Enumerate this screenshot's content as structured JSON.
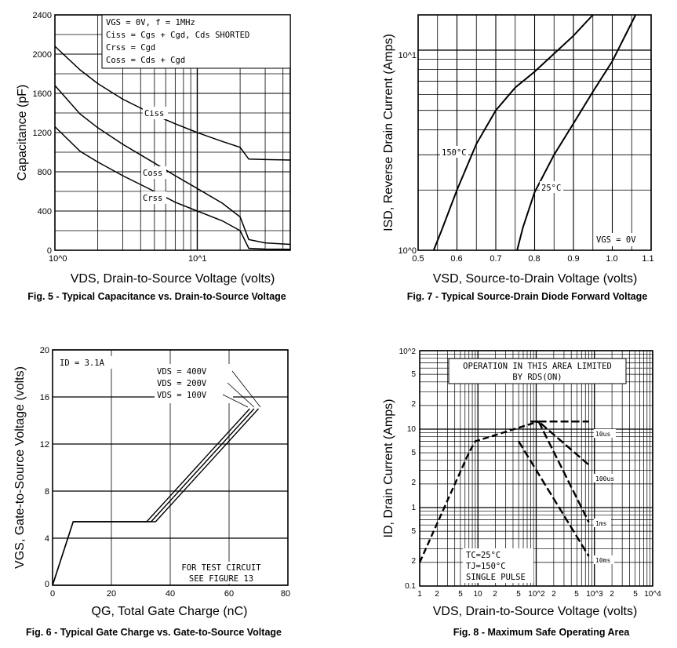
{
  "chart_data": [
    {
      "id": "fig5",
      "type": "line",
      "caption": "Fig. 5 - Typical Capacitance vs. Drain-to-Source Voltage",
      "xlabel": "VDS, Drain-to-Source Voltage (volts)",
      "ylabel": "Capacitance (pF)",
      "xscale": "log",
      "xlim": [
        1,
        45
      ],
      "ylim": [
        0,
        2400
      ],
      "xticks": [
        "10^0",
        "10^1"
      ],
      "yticks": [
        0,
        400,
        800,
        1200,
        1600,
        2000,
        2400
      ],
      "legend_lines": [
        "VGS = 0V, f = 1MHz",
        "Ciss = Cgs + Cgd, Cds SHORTED",
        "Crss = Cgd",
        "Coss = Cds + Cgd"
      ],
      "series": [
        {
          "name": "Ciss",
          "x": [
            1,
            1.5,
            2,
            3,
            5,
            7,
            10,
            15,
            20,
            23,
            30,
            45
          ],
          "y": [
            2080,
            1840,
            1700,
            1540,
            1380,
            1290,
            1200,
            1110,
            1050,
            930,
            925,
            920
          ]
        },
        {
          "name": "Coss",
          "x": [
            1,
            1.5,
            2,
            3,
            5,
            7,
            10,
            15,
            20,
            23,
            30,
            45
          ],
          "y": [
            1680,
            1390,
            1250,
            1080,
            890,
            760,
            630,
            480,
            340,
            110,
            75,
            60
          ]
        },
        {
          "name": "Crss",
          "x": [
            1,
            1.5,
            2,
            3,
            5,
            7,
            10,
            15,
            20,
            23,
            30,
            45
          ],
          "y": [
            1260,
            1010,
            900,
            760,
            600,
            490,
            400,
            300,
            200,
            20,
            12,
            10
          ]
        }
      ]
    },
    {
      "id": "fig7",
      "type": "line",
      "caption": "Fig. 7 - Typical Source-Drain Diode Forward Voltage",
      "xlabel": "VSD, Source-to-Drain Voltage (volts)",
      "ylabel": "ISD, Reverse Drain Current (Amps)",
      "yscale": "log",
      "xlim": [
        0.5,
        1.1
      ],
      "ylim": [
        1,
        15
      ],
      "xticks": [
        "0.5",
        "0.6",
        "0.7",
        "0.8",
        "0.9",
        "1.0",
        "1.1"
      ],
      "yticks": [
        "10^0",
        "10^1"
      ],
      "annotation": "VGS = 0V",
      "series": [
        {
          "name": "150°C",
          "x": [
            0.54,
            0.56,
            0.6,
            0.65,
            0.7,
            0.75,
            0.8,
            0.86,
            0.9,
            0.95
          ],
          "y": [
            1.0,
            1.25,
            2.0,
            3.4,
            5.0,
            6.5,
            7.8,
            10.0,
            11.8,
            15.0
          ]
        },
        {
          "name": "25°C",
          "x": [
            0.755,
            0.77,
            0.8,
            0.85,
            0.9,
            0.95,
            1.0,
            1.06
          ],
          "y": [
            1.0,
            1.3,
            1.95,
            3.0,
            4.3,
            6.2,
            8.8,
            15.0
          ]
        }
      ]
    },
    {
      "id": "fig6",
      "type": "line",
      "caption": "Fig. 6 - Typical Gate Charge vs. Gate-to-Source Voltage",
      "xlabel": "QG, Total Gate Charge (nC)",
      "ylabel": "VGS, Gate-to-Source Voltage (volts)",
      "xlim": [
        0,
        80
      ],
      "ylim": [
        0,
        20
      ],
      "xticks": [
        0,
        20,
        40,
        60,
        80
      ],
      "yticks": [
        0,
        4,
        8,
        12,
        16,
        20
      ],
      "id_label": "ID = 3.1A",
      "note": [
        "FOR TEST CIRCUIT",
        "SEE FIGURE 13"
      ],
      "legend_lines": [
        "VDS = 400V",
        "VDS = 200V",
        "VDS = 100V"
      ],
      "series": [
        {
          "name": "VDS = 400V",
          "x": [
            0,
            7,
            35,
            70
          ],
          "y": [
            0,
            5.4,
            5.4,
            15
          ]
        },
        {
          "name": "VDS = 200V",
          "x": [
            0,
            7,
            33.5,
            68.5
          ],
          "y": [
            0,
            5.4,
            5.4,
            15
          ]
        },
        {
          "name": "VDS = 100V",
          "x": [
            0,
            7,
            32,
            67
          ],
          "y": [
            0,
            5.4,
            5.4,
            15
          ]
        }
      ]
    },
    {
      "id": "fig8",
      "type": "line",
      "caption": "Fig. 8 - Maximum Safe Operating Area",
      "xlabel": "VDS, Drain-to-Source Voltage (volts)",
      "ylabel": "ID, Drain Current (Amps)",
      "xscale": "log",
      "yscale": "log",
      "xlim": [
        1,
        10000
      ],
      "ylim": [
        0.1,
        100
      ],
      "xticks": [
        "1",
        "2",
        "5",
        "10",
        "2",
        "5",
        "10^2",
        "2",
        "5",
        "10^3",
        "2",
        "5",
        "10^4"
      ],
      "yticks": [
        "0.1",
        "2",
        "5",
        "1",
        "2",
        "5",
        "10",
        "2",
        "5",
        "10^2"
      ],
      "limit_box": [
        "OPERATION IN THIS AREA LIMITED",
        "BY RDS(ON)"
      ],
      "conditions": [
        "TC=25°C",
        "TJ=150°C",
        "SINGLE PULSE"
      ],
      "series": [
        {
          "name": "RDS(on) limit",
          "x": [
            1,
            7,
            9,
            110
          ],
          "y": [
            0.2,
            5,
            7,
            12.5
          ]
        },
        {
          "name": "10us",
          "x": [
            110,
            800
          ],
          "y": [
            12.5,
            12.5
          ]
        },
        {
          "name": "100us",
          "x": [
            80,
            110,
            800
          ],
          "y": [
            12.5,
            12.5,
            3.5
          ]
        },
        {
          "name": "1ms",
          "x": [
            110,
            800
          ],
          "y": [
            12.5,
            0.65
          ]
        },
        {
          "name": "10ms",
          "x": [
            50,
            800
          ],
          "y": [
            7,
            0.24
          ]
        }
      ],
      "pulse_labels": [
        "10us",
        "100us",
        "1ms",
        "10ms"
      ]
    }
  ]
}
